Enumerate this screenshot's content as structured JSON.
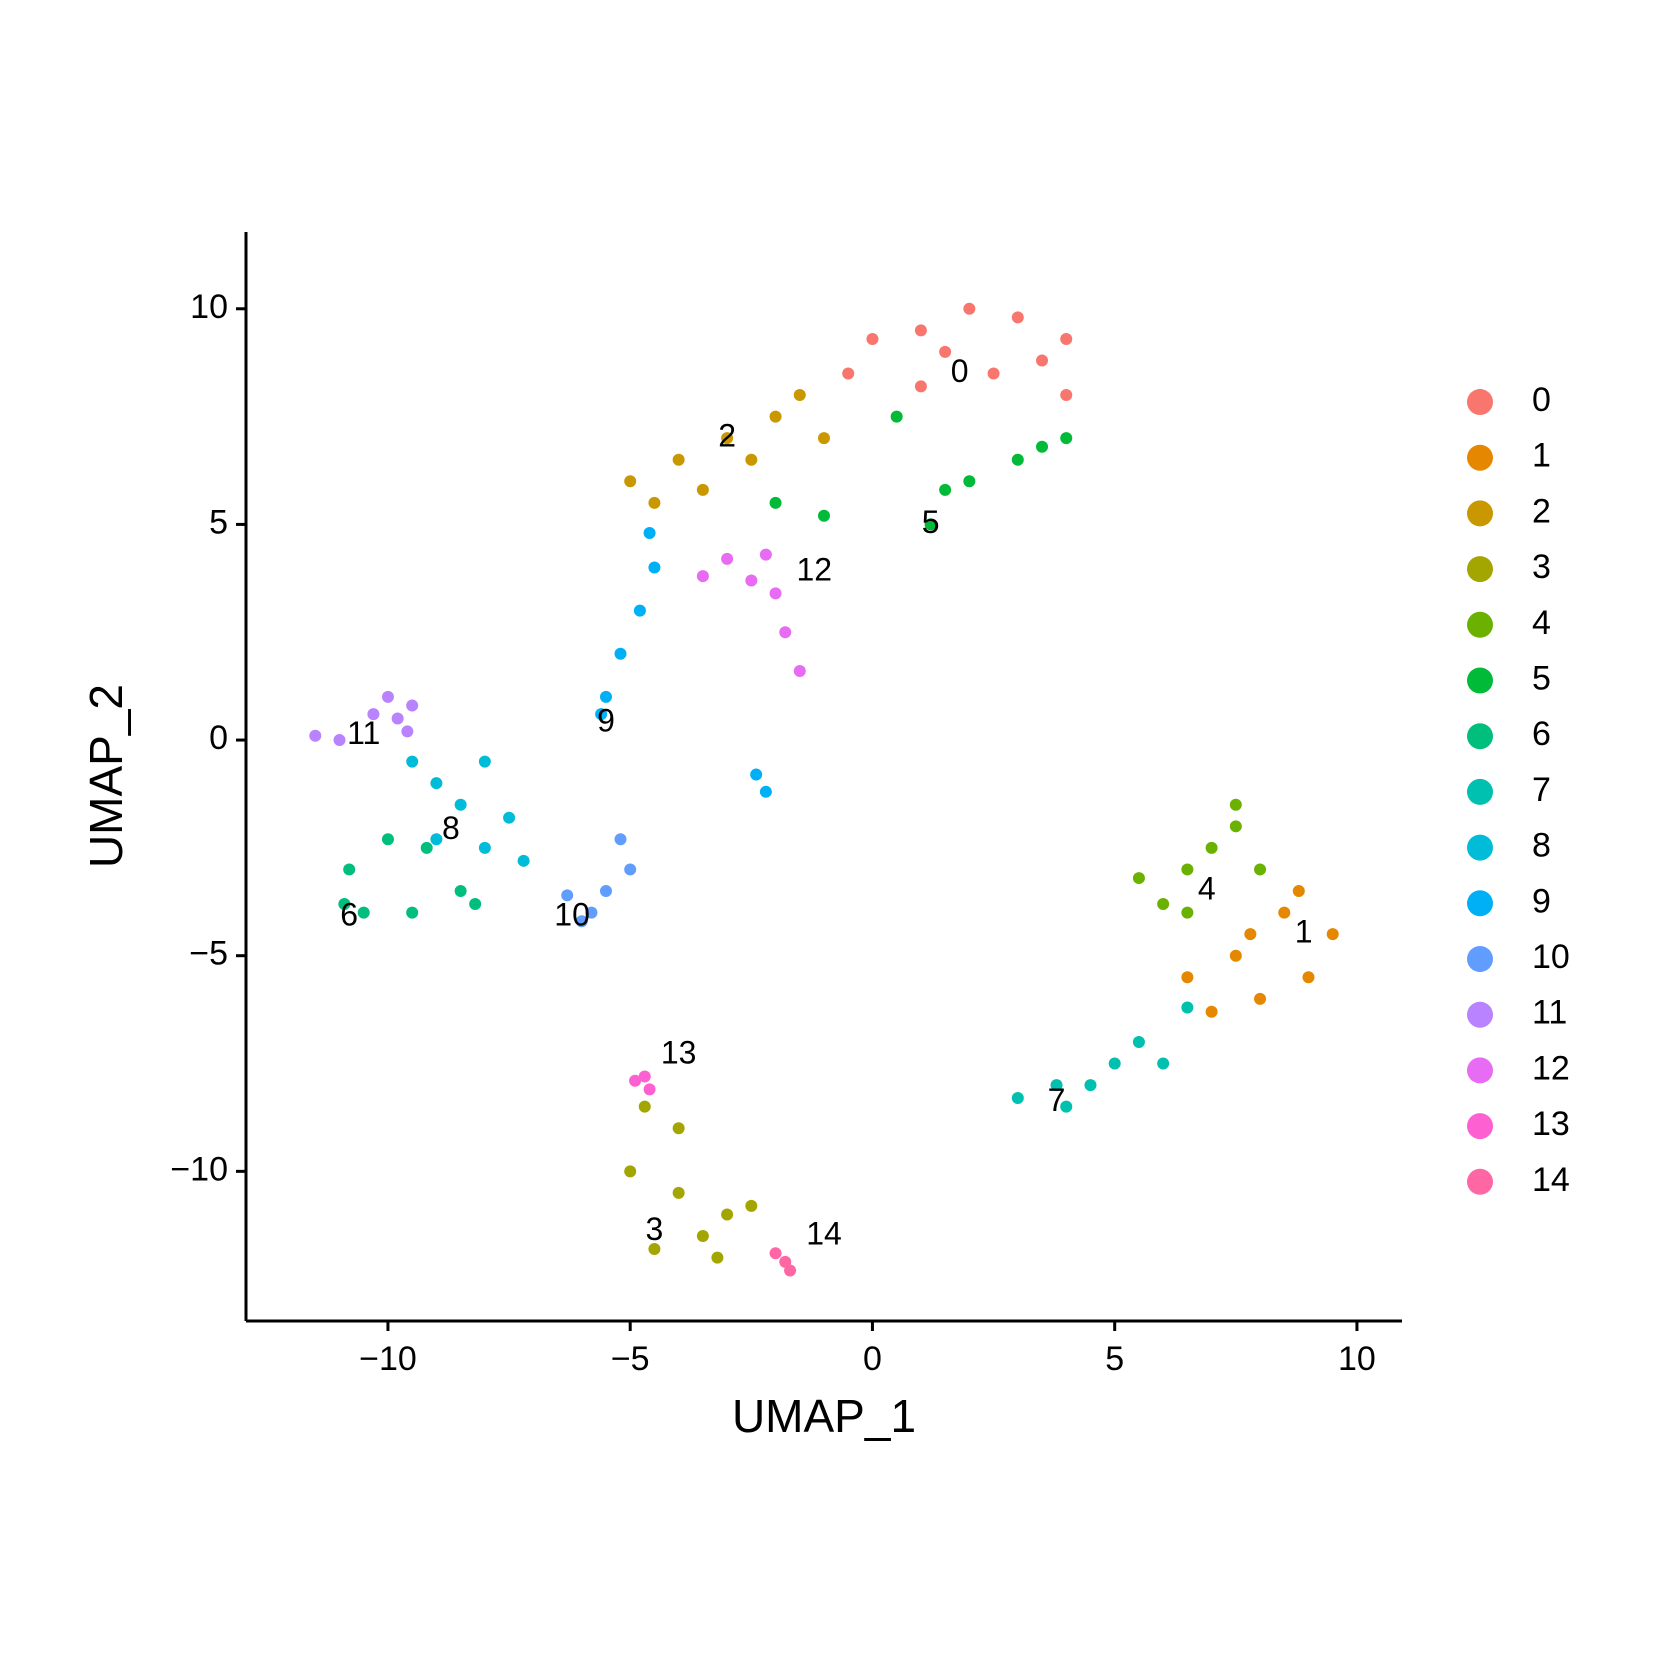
{
  "chart_data": {
    "type": "scatter",
    "xlabel": "UMAP_1",
    "ylabel": "UMAP_2",
    "xlim": [
      -12.93,
      10.93
    ],
    "ylim": [
      -13.47,
      11.78
    ],
    "xticks": [
      {
        "value": -10,
        "label": "−10"
      },
      {
        "value": -5,
        "label": "−5"
      },
      0,
      5,
      10
    ],
    "yticks": [
      {
        "value": -10,
        "label": "−10"
      },
      {
        "value": -5,
        "label": "−5"
      },
      0,
      5,
      10
    ],
    "legend": "right",
    "series": [
      {
        "name": "0",
        "color": "#F8766D",
        "x": [
          1,
          2,
          3,
          4,
          4,
          2.5,
          1.5,
          0,
          -0.5,
          3.5,
          1
        ],
        "y": [
          9.5,
          10,
          9.8,
          9.3,
          8,
          8.5,
          9,
          9.3,
          8.5,
          8.8,
          8.2
        ]
      },
      {
        "name": "1",
        "color": "#E58700",
        "x": [
          6.5,
          7.5,
          8.5,
          9.5,
          8,
          7,
          9,
          8.8,
          7.8
        ],
        "y": [
          -5.5,
          -5,
          -4,
          -4.5,
          -6,
          -6.3,
          -5.5,
          -3.5,
          -4.5
        ]
      },
      {
        "name": "2",
        "color": "#C99800",
        "x": [
          -5,
          -4,
          -3,
          -2,
          -1.5,
          -4.5,
          -3.5,
          -2.5,
          -1
        ],
        "y": [
          6,
          6.5,
          7,
          7.5,
          8,
          5.5,
          5.8,
          6.5,
          7
        ]
      },
      {
        "name": "3",
        "color": "#A3A500",
        "x": [
          -5,
          -4,
          -3,
          -4.5,
          -3.5,
          -2.5,
          -4,
          -4.7,
          -3.2
        ],
        "y": [
          -10,
          -10.5,
          -11,
          -11.8,
          -11.5,
          -10.8,
          -9,
          -8.5,
          -12
        ]
      },
      {
        "name": "4",
        "color": "#6BB100",
        "x": [
          5.5,
          6.5,
          7.5,
          7.5,
          8,
          6.5,
          7,
          6
        ],
        "y": [
          -3.2,
          -3,
          -2,
          -1.5,
          -3,
          -4,
          -2.5,
          -3.8
        ]
      },
      {
        "name": "5",
        "color": "#00BA38",
        "x": [
          -2,
          -1,
          1.2,
          2,
          3,
          4,
          3.5,
          0.5,
          1.5
        ],
        "y": [
          5.5,
          5.2,
          5,
          6,
          6.5,
          7,
          6.8,
          7.5,
          5.8
        ]
      },
      {
        "name": "6",
        "color": "#00BF7D",
        "x": [
          -10.8,
          -10.5,
          -10,
          -9.5,
          -8.5,
          -8.2,
          -10.9,
          -9.2
        ],
        "y": [
          -3,
          -4,
          -2.3,
          -4,
          -3.5,
          -3.8,
          -3.8,
          -2.5
        ]
      },
      {
        "name": "7",
        "color": "#00C0AF",
        "x": [
          3,
          4,
          5,
          5.5,
          6.5,
          4.5,
          6,
          3.8
        ],
        "y": [
          -8.3,
          -8.5,
          -7.5,
          -7,
          -6.2,
          -8,
          -7.5,
          -8
        ]
      },
      {
        "name": "8",
        "color": "#00BCD8",
        "x": [
          -9.5,
          -9,
          -8.5,
          -8,
          -7.5,
          -8,
          -7.2,
          -9
        ],
        "y": [
          -0.5,
          -1,
          -1.5,
          -0.5,
          -1.8,
          -2.5,
          -2.8,
          -2.3
        ]
      },
      {
        "name": "9",
        "color": "#00B0F6",
        "x": [
          -5.5,
          -5.2,
          -4.8,
          -4.5,
          -4.6,
          -5.6,
          -2.2,
          -2.4
        ],
        "y": [
          1,
          2,
          3,
          4,
          4.8,
          0.6,
          -1.2,
          -0.8
        ]
      },
      {
        "name": "10",
        "color": "#619CFF",
        "x": [
          -6.3,
          -5.5,
          -5,
          -5.2,
          -5.8,
          -6
        ],
        "y": [
          -3.6,
          -3.5,
          -3,
          -2.3,
          -4,
          -4.2
        ]
      },
      {
        "name": "11",
        "color": "#B983FF",
        "x": [
          -10,
          -9.8,
          -9.5,
          -10.3,
          -11.5,
          -11,
          -9.6
        ],
        "y": [
          1,
          0.5,
          0.8,
          0.6,
          0.1,
          0,
          0.2
        ]
      },
      {
        "name": "12",
        "color": "#E76BF3",
        "x": [
          -3.5,
          -2.5,
          -2,
          -1.8,
          -1.5,
          -3,
          -2.2
        ],
        "y": [
          3.8,
          3.7,
          3.4,
          2.5,
          1.6,
          4.2,
          4.3
        ]
      },
      {
        "name": "13",
        "color": "#FD61D1",
        "x": [
          -4.9,
          -4.7,
          -4.6
        ],
        "y": [
          -7.9,
          -7.8,
          -8.1
        ]
      },
      {
        "name": "14",
        "color": "#FF67A4",
        "x": [
          -2,
          -1.8,
          -1.7
        ],
        "y": [
          -11.9,
          -12.1,
          -12.3
        ]
      }
    ],
    "annotations": [
      {
        "text": "0",
        "x": 1.8,
        "y": 8.5
      },
      {
        "text": "1",
        "x": 8.9,
        "y": -4.5
      },
      {
        "text": "2",
        "x": -3,
        "y": 7
      },
      {
        "text": "3",
        "x": -4.5,
        "y": -11.4
      },
      {
        "text": "4",
        "x": 6.9,
        "y": -3.5
      },
      {
        "text": "5",
        "x": 1.2,
        "y": 5
      },
      {
        "text": "6",
        "x": -10.8,
        "y": -4.1
      },
      {
        "text": "7",
        "x": 3.8,
        "y": -8.4
      },
      {
        "text": "8",
        "x": -8.7,
        "y": -2.1
      },
      {
        "text": "9",
        "x": -5.5,
        "y": 0.4
      },
      {
        "text": "10",
        "x": -6.2,
        "y": -4.1
      },
      {
        "text": "11",
        "x": -10.5,
        "y": 0.1
      },
      {
        "text": "12",
        "x": -1.2,
        "y": 3.9
      },
      {
        "text": "13",
        "x": -4,
        "y": -7.3
      },
      {
        "text": "14",
        "x": -1,
        "y": -11.5
      }
    ]
  }
}
